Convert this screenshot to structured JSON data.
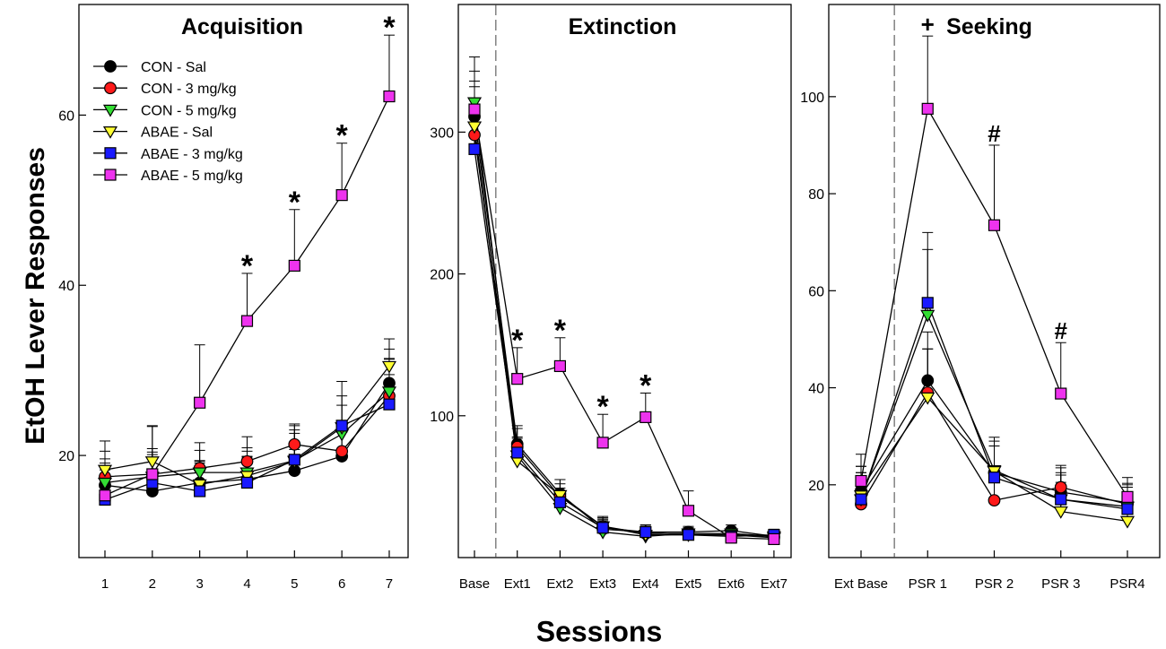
{
  "figure": {
    "ylabel": "EtOH Lever Responses",
    "xlabel": "Sessions"
  },
  "series_styles": [
    {
      "name": "CON - Sal",
      "marker": "circle",
      "color": "#000000"
    },
    {
      "name": "CON - 3 mg/kg",
      "marker": "circle",
      "color": "#ff1a1a"
    },
    {
      "name": "CON - 5 mg/kg",
      "marker": "triangle-down",
      "color": "#33dd33"
    },
    {
      "name": "ABAE - Sal",
      "marker": "triangle-down",
      "color": "#ffff33"
    },
    {
      "name": "ABAE - 3 mg/kg",
      "marker": "square",
      "color": "#1a1aff"
    },
    {
      "name": "ABAE - 5 mg/kg",
      "marker": "square",
      "color": "#ee33ee"
    }
  ],
  "chart_data": [
    {
      "type": "line",
      "title": "Acquisition",
      "legend": "top-left",
      "categories": [
        "1",
        "2",
        "3",
        "4",
        "5",
        "6",
        "7"
      ],
      "ylim": [
        8,
        73
      ],
      "yticks": [
        20,
        40,
        60
      ],
      "series": [
        {
          "name": "CON - Sal",
          "values": [
            16.5,
            15.8,
            16.8,
            17.2,
            18.2,
            19.9,
            28.5
          ],
          "errors": [
            2.6,
            2.5,
            2.5,
            2.6,
            2.5,
            2.8,
            4.0
          ]
        },
        {
          "name": "CON - 3 mg/kg",
          "values": [
            17.5,
            17.8,
            18.5,
            19.3,
            21.3,
            20.5,
            27.0
          ],
          "errors": [
            3.0,
            3.0,
            3.0,
            2.9,
            2.4,
            3.0,
            4.3
          ]
        },
        {
          "name": "CON - 5 mg/kg",
          "values": [
            16.8,
            17.5,
            18.0,
            18.0,
            19.4,
            22.5,
            27.5
          ],
          "errors": [
            2.8,
            2.9,
            2.6,
            2.9,
            3.2,
            3.4,
            3.9
          ]
        },
        {
          "name": "ABAE - Sal",
          "values": [
            18.3,
            19.3,
            16.6,
            17.6,
            19.3,
            23.3,
            30.5
          ],
          "errors": [
            3.4,
            4.2,
            2.8,
            2.9,
            4.2,
            3.7,
            3.2
          ]
        },
        {
          "name": "ABAE - 3 mg/kg",
          "values": [
            14.8,
            16.8,
            15.8,
            16.8,
            19.5,
            23.5,
            26.0
          ],
          "errors": [
            3.0,
            3.3,
            3.3,
            3.1,
            3.5,
            5.2,
            3.5
          ]
        },
        {
          "name": "ABAE - 5 mg/kg",
          "values": [
            15.3,
            17.8,
            26.2,
            35.8,
            42.3,
            50.6,
            62.2
          ],
          "errors": [
            3.0,
            5.6,
            6.8,
            5.6,
            6.6,
            6.1,
            7.2
          ]
        }
      ],
      "annotations": [
        {
          "category": "4",
          "text": "*"
        },
        {
          "category": "5",
          "text": "*"
        },
        {
          "category": "6",
          "text": "*"
        },
        {
          "category": "7",
          "text": "*"
        }
      ]
    },
    {
      "type": "line",
      "title": "Extinction",
      "categories": [
        "Base",
        "Ext1",
        "Ext2",
        "Ext3",
        "Ext4",
        "Ext5",
        "Ext6",
        "Ext7"
      ],
      "ylim": [
        0,
        390
      ],
      "yticks": [
        100,
        200,
        300
      ],
      "divider_after": "Base",
      "series": [
        {
          "name": "CON - Sal",
          "values": [
            311,
            80,
            45,
            20,
            18,
            18,
            19,
            15
          ],
          "errors": [
            25,
            13,
            10,
            7,
            5,
            4,
            4,
            4
          ]
        },
        {
          "name": "CON - 3 mg/kg",
          "values": [
            298,
            78,
            43,
            22,
            17,
            17,
            17,
            14
          ],
          "errors": [
            26,
            13,
            9,
            7,
            5,
            4,
            4,
            4
          ]
        },
        {
          "name": "CON - 5 mg/kg",
          "values": [
            321,
            72,
            35,
            18,
            15,
            17,
            17,
            15
          ],
          "errors": [
            22,
            12,
            9,
            8,
            6,
            4,
            4,
            4
          ]
        },
        {
          "name": "ABAE - Sal",
          "values": [
            304,
            68,
            44,
            22,
            16,
            16,
            16,
            14
          ],
          "errors": [
            28,
            12,
            11,
            6,
            5,
            4,
            4,
            5
          ]
        },
        {
          "name": "ABAE - 3 mg/kg",
          "values": [
            288,
            74,
            39,
            21,
            18,
            16,
            15,
            16
          ],
          "errors": [
            27,
            11,
            10,
            7,
            5,
            4,
            4,
            4
          ]
        },
        {
          "name": "ABAE - 5 mg/kg",
          "values": [
            316,
            126,
            135,
            81,
            99,
            33,
            14,
            13
          ],
          "errors": [
            37,
            22,
            20,
            20,
            17,
            14,
            5,
            5
          ]
        }
      ],
      "annotations": [
        {
          "category": "Ext1",
          "text": "*"
        },
        {
          "category": "Ext2",
          "text": "*"
        },
        {
          "category": "Ext3",
          "text": "*"
        },
        {
          "category": "Ext4",
          "text": "*"
        }
      ]
    },
    {
      "type": "line",
      "title": "Seeking",
      "categories": [
        "Ext Base",
        "PSR 1",
        "PSR 2",
        "PSR 3",
        "PSR4"
      ],
      "ylim": [
        5,
        119
      ],
      "yticks": [
        20,
        40,
        60,
        80,
        100
      ],
      "divider_after": "Ext Base",
      "series": [
        {
          "name": "CON - Sal",
          "values": [
            18.8,
            41.5,
            22.5,
            18.5,
            16.3
          ],
          "errors": [
            5.0,
            10.0,
            5.5,
            5.0,
            4.0
          ]
        },
        {
          "name": "CON - 3 mg/kg",
          "values": [
            16.0,
            39.0,
            16.8,
            19.5,
            16.0
          ],
          "errors": [
            5.0,
            9.0,
            4.5,
            4.5,
            3.5
          ]
        },
        {
          "name": "CON - 5 mg/kg",
          "values": [
            17.0,
            55.0,
            23.0,
            17.0,
            15.5
          ],
          "errors": [
            5.5,
            13.5,
            6.0,
            5.0,
            4.5
          ]
        },
        {
          "name": "ABAE - Sal",
          "values": [
            17.8,
            38.0,
            22.8,
            14.5,
            12.5
          ],
          "errors": [
            6.0,
            10.0,
            7.0,
            6.0,
            5.0
          ]
        },
        {
          "name": "ABAE - 3 mg/kg",
          "values": [
            17.0,
            57.5,
            21.5,
            17.0,
            15.0
          ],
          "errors": [
            5.5,
            14.5,
            6.5,
            5.5,
            4.5
          ]
        },
        {
          "name": "ABAE - 5 mg/kg",
          "values": [
            20.8,
            97.5,
            73.5,
            38.8,
            17.5
          ],
          "errors": [
            5.5,
            15.0,
            16.5,
            10.5,
            4.0
          ]
        }
      ],
      "annotations": [
        {
          "category": "PSR 1",
          "text": "+"
        },
        {
          "category": "PSR 2",
          "text": "#"
        },
        {
          "category": "PSR 3",
          "text": "#"
        }
      ]
    }
  ]
}
